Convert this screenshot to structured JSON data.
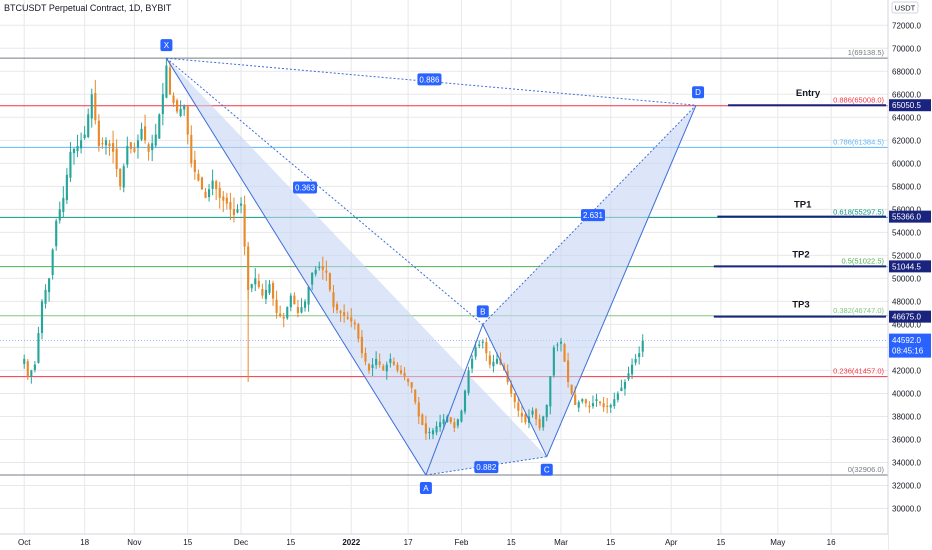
{
  "title": "BTCUSDT Perpetual Contract, 1D, BYBIT",
  "currency": "USDT",
  "colors": {
    "up": "#26a69a",
    "down": "#ef5350",
    "candle": "#e8892a",
    "harmonic_fill": "#c7d3f5",
    "harmonic_line": "#3d6fd9",
    "label_bg": "#2962ff",
    "axis_text": "#131722",
    "grid": "#e8e8e8"
  },
  "chart_data": {
    "type": "candlestick",
    "title": "BTCUSDT Perpetual Contract, 1D, BYBIT",
    "ylim": [
      29000,
      73500
    ],
    "y_ticks": [
      30000,
      32000,
      34000,
      36000,
      38000,
      40000,
      42000,
      44000,
      46000,
      48000,
      50000,
      52000,
      54000,
      56000,
      58000,
      60000,
      62000,
      64000,
      66000,
      68000,
      70000,
      72000
    ],
    "x_ticks": [
      {
        "day": 0,
        "label": "Oct"
      },
      {
        "day": 17,
        "label": "18"
      },
      {
        "day": 31,
        "label": "Nov"
      },
      {
        "day": 46,
        "label": "15"
      },
      {
        "day": 61,
        "label": "Dec"
      },
      {
        "day": 75,
        "label": "15"
      },
      {
        "day": 92,
        "label": "2022"
      },
      {
        "day": 108,
        "label": "17"
      },
      {
        "day": 123,
        "label": "Feb"
      },
      {
        "day": 137,
        "label": "15"
      },
      {
        "day": 151,
        "label": "Mar"
      },
      {
        "day": 165,
        "label": "15"
      },
      {
        "day": 182,
        "label": "Apr"
      },
      {
        "day": 196,
        "label": "15"
      },
      {
        "day": 212,
        "label": "May"
      },
      {
        "day": 227,
        "label": "16"
      }
    ],
    "x_day_range": [
      -4,
      243
    ],
    "close_path": [
      [
        0,
        43000
      ],
      [
        1,
        41500
      ],
      [
        3,
        42500
      ],
      [
        5,
        48000
      ],
      [
        7,
        50000
      ],
      [
        9,
        55000
      ],
      [
        11,
        57000
      ],
      [
        13,
        61000
      ],
      [
        15,
        61500
      ],
      [
        17,
        62500
      ],
      [
        19,
        66000
      ],
      [
        21,
        61500
      ],
      [
        23,
        62000
      ],
      [
        25,
        61000
      ],
      [
        27,
        58000
      ],
      [
        29,
        61500
      ],
      [
        31,
        61000
      ],
      [
        33,
        63000
      ],
      [
        35,
        61000
      ],
      [
        37,
        62500
      ],
      [
        39,
        66000
      ],
      [
        40,
        68500
      ],
      [
        41,
        66000
      ],
      [
        43,
        64500
      ],
      [
        45,
        65000
      ],
      [
        47,
        60000
      ],
      [
        49,
        58500
      ],
      [
        51,
        57000
      ],
      [
        53,
        58500
      ],
      [
        55,
        57000
      ],
      [
        57,
        56500
      ],
      [
        59,
        55500
      ],
      [
        61,
        56500
      ],
      [
        63,
        49000
      ],
      [
        65,
        50000
      ],
      [
        67,
        48500
      ],
      [
        69,
        49500
      ],
      [
        71,
        47000
      ],
      [
        73,
        46500
      ],
      [
        75,
        48500
      ],
      [
        77,
        47000
      ],
      [
        79,
        48000
      ],
      [
        81,
        50500
      ],
      [
        83,
        51000
      ],
      [
        85,
        50500
      ],
      [
        87,
        47500
      ],
      [
        89,
        47000
      ],
      [
        91,
        46500
      ],
      [
        93,
        46000
      ],
      [
        95,
        43500
      ],
      [
        97,
        42000
      ],
      [
        99,
        43000
      ],
      [
        101,
        42000
      ],
      [
        103,
        43000
      ],
      [
        105,
        42000
      ],
      [
        107,
        41500
      ],
      [
        109,
        40500
      ],
      [
        111,
        38000
      ],
      [
        113,
        36500
      ],
      [
        115,
        36800
      ],
      [
        117,
        37500
      ],
      [
        119,
        38000
      ],
      [
        121,
        37000
      ],
      [
        123,
        38500
      ],
      [
        125,
        42000
      ],
      [
        127,
        44000
      ],
      [
        129,
        44500
      ],
      [
        131,
        42500
      ],
      [
        133,
        43000
      ],
      [
        135,
        42000
      ],
      [
        137,
        40000
      ],
      [
        139,
        38500
      ],
      [
        141,
        37500
      ],
      [
        143,
        38500
      ],
      [
        145,
        37000
      ],
      [
        147,
        39000
      ],
      [
        149,
        44000
      ],
      [
        151,
        44500
      ],
      [
        153,
        41000
      ],
      [
        155,
        39000
      ],
      [
        157,
        39500
      ],
      [
        159,
        38800
      ],
      [
        161,
        39500
      ],
      [
        163,
        38800
      ],
      [
        165,
        39000
      ],
      [
        167,
        40000
      ],
      [
        169,
        41000
      ],
      [
        171,
        42500
      ],
      [
        173,
        43500
      ],
      [
        174,
        44592
      ]
    ],
    "spike": {
      "day": 63,
      "high": 53000,
      "low": 41000
    },
    "harmonic": {
      "points": [
        {
          "label": "X",
          "day": 40,
          "price": 69138.5
        },
        {
          "label": "A",
          "day": 113,
          "price": 32906
        },
        {
          "label": "B",
          "day": 129,
          "price": 46000
        },
        {
          "label": "C",
          "day": 147,
          "price": 34500
        },
        {
          "label": "D",
          "day": 189,
          "price": 65050.5
        }
      ],
      "ratios": [
        {
          "text": "0.886",
          "day": 114,
          "price": 67300
        },
        {
          "text": "0.363",
          "day": 79,
          "price": 57900
        },
        {
          "text": "2.631",
          "day": 160,
          "price": 55500
        },
        {
          "text": "0.882",
          "day": 130,
          "price": 33600
        }
      ]
    },
    "fib_levels": [
      {
        "ratio": "1",
        "value": "69138.5",
        "price": 69138.5,
        "color": "#787b86"
      },
      {
        "ratio": "0.886",
        "value": "65008.0",
        "price": 65008.0,
        "color": "#f23645"
      },
      {
        "ratio": "0.786",
        "value": "61384.5",
        "price": 61384.5,
        "color": "#64b5f6"
      },
      {
        "ratio": "0.618",
        "value": "55297.5",
        "price": 55297.5,
        "color": "#089981"
      },
      {
        "ratio": "0.5",
        "value": "51022.5",
        "price": 51022.5,
        "color": "#4caf50"
      },
      {
        "ratio": "0.382",
        "value": "46747.0",
        "price": 46747.0,
        "color": "#81c784"
      },
      {
        "ratio": "0.236",
        "value": "41457.0",
        "price": 41457.0,
        "color": "#f23645"
      },
      {
        "ratio": "0",
        "value": "32906.0",
        "price": 32906.0,
        "color": "#787b86"
      }
    ],
    "targets": [
      {
        "name": "Entry",
        "price": 65050.5,
        "line_start_day": 198
      },
      {
        "name": "TP1",
        "price": 55366.0,
        "line_start_day": 195
      },
      {
        "name": "TP2",
        "price": 51044.5,
        "line_start_day": 194
      },
      {
        "name": "TP3",
        "price": 46675.0,
        "line_start_day": 194
      }
    ],
    "price_labels": [
      {
        "text": "65050.5",
        "price": 65050.5
      },
      {
        "text": "55366.0",
        "price": 55366.0
      },
      {
        "text": "51044.5",
        "price": 51044.5
      },
      {
        "text": "46675.0",
        "price": 46675.0
      }
    ],
    "current": {
      "price": 44592.0,
      "price_text": "44592.0",
      "countdown": "08:45:16"
    }
  }
}
